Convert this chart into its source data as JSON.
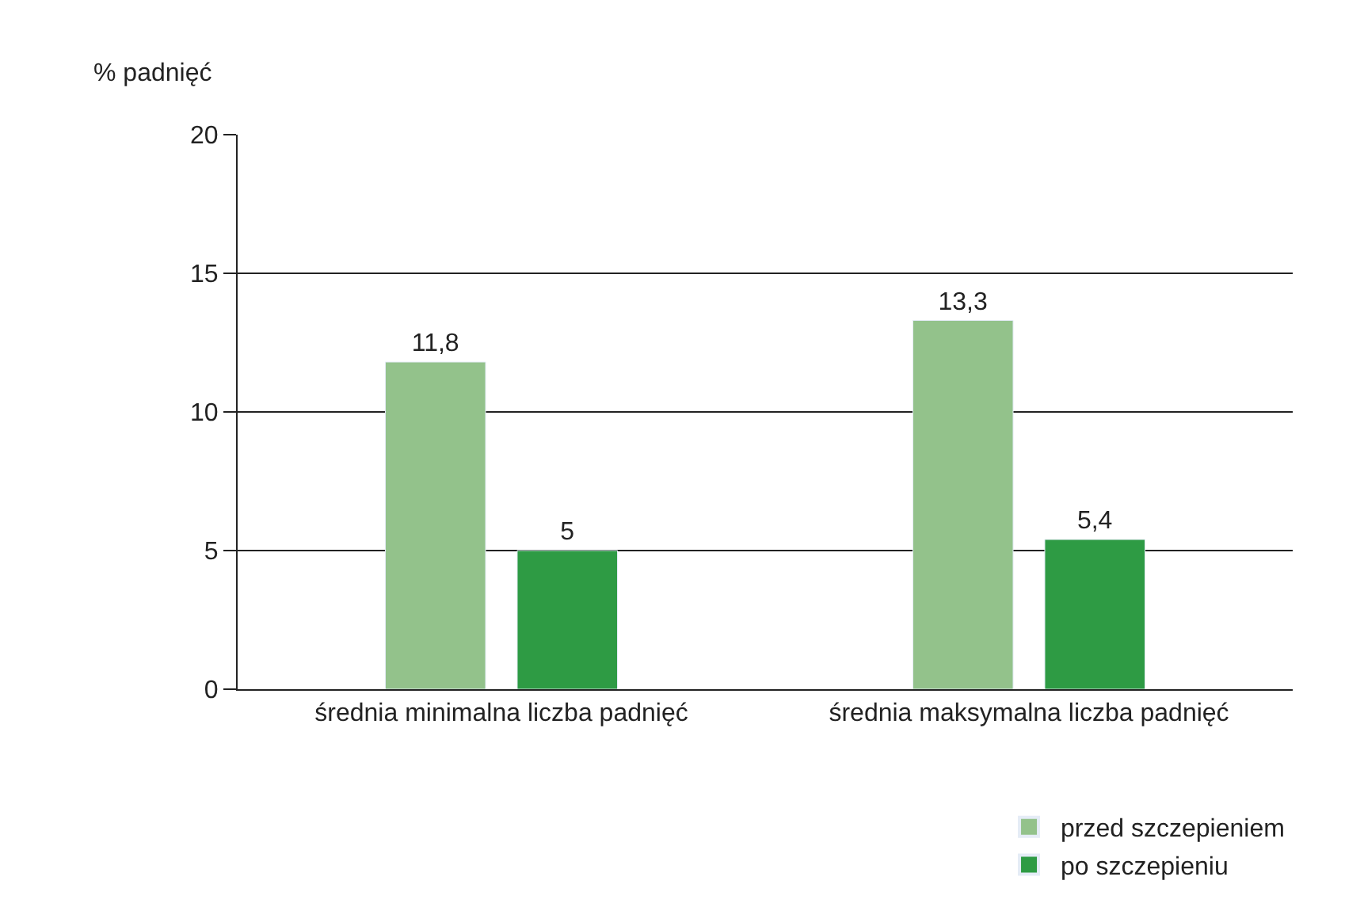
{
  "chart_data": {
    "type": "bar",
    "ylabel": "% padnięć",
    "categories": [
      "średnia minimalna liczba padnięć",
      "średnia maksymalna liczba padnięć"
    ],
    "series": [
      {
        "name": "przed szczepieniem",
        "color": "#93c28b",
        "values": [
          11.8,
          13.3
        ],
        "value_labels": [
          "11,8",
          "13,3"
        ]
      },
      {
        "name": "po szczepieniu",
        "color": "#2e9b44",
        "values": [
          5,
          5.4
        ],
        "value_labels": [
          "5",
          "5,4"
        ]
      }
    ],
    "ylim": [
      0,
      20
    ],
    "yticks": [
      0,
      5,
      10,
      15,
      20
    ],
    "grid": "y",
    "legend": "bottom right"
  }
}
